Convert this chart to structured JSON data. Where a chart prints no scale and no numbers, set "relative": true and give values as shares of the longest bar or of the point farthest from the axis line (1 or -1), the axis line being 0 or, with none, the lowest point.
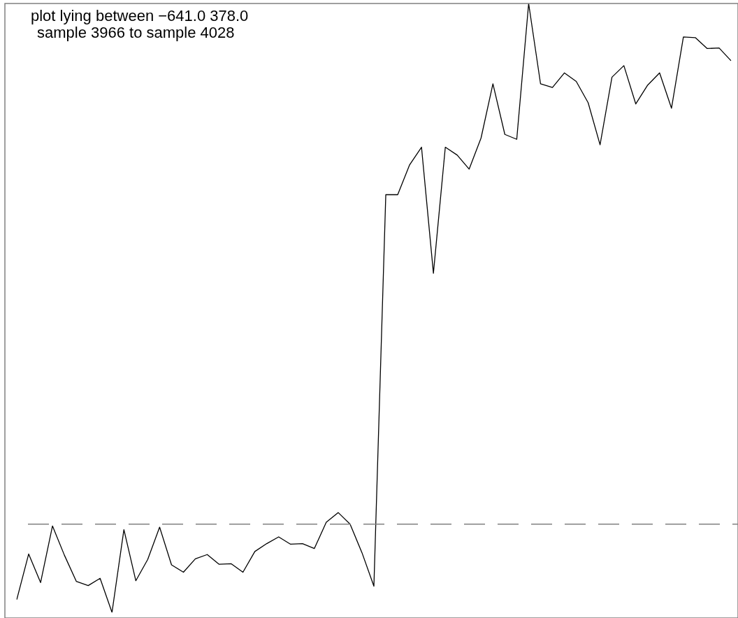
{
  "chart_data": {
    "type": "line",
    "relative": true,
    "annotations": [
      "plot lying between −641.0 378.0",
      "sample 3966 to sample 4028"
    ],
    "categories": [
      null,
      null,
      null,
      null,
      null,
      null,
      null,
      null,
      null,
      null,
      null,
      null,
      null,
      null,
      null,
      null,
      null,
      null,
      null,
      null,
      null,
      null,
      null,
      null,
      null,
      null,
      null,
      null,
      null,
      null,
      null,
      null,
      null,
      null,
      null,
      null,
      null,
      null,
      null,
      null,
      null,
      null,
      null,
      null,
      null,
      null,
      null,
      null,
      null,
      null,
      null,
      null,
      null,
      null,
      null,
      null,
      null,
      null,
      null,
      null,
      null
    ],
    "series": [
      {
        "color": "#000000",
        "values": [
          0.021,
          0.096,
          0.049,
          0.142,
          0.094,
          0.051,
          0.044,
          0.056,
          0,
          0.136,
          0.052,
          0.087,
          0.14,
          0.078,
          0.066,
          0.088,
          0.095,
          0.079,
          0.08,
          0.066,
          0.1,
          0.113,
          0.124,
          0.112,
          0.113,
          0.105,
          0.148,
          0.164,
          0.145,
          0.098,
          0.043,
          0.686,
          0.686,
          0.735,
          0.764,
          0.557,
          0.764,
          0.751,
          0.728,
          0.779,
          0.868,
          0.785,
          0.777,
          1,
          0.868,
          0.862,
          0.886,
          0.872,
          0.837,
          0.768,
          0.879,
          0.898,
          0.835,
          0.866,
          0.886,
          0.828,
          0.945,
          0.944,
          0.926,
          0.927,
          0.906
        ]
      }
    ],
    "marker": "none",
    "line_style": "solid",
    "ref_lines": [
      {
        "axis": "y",
        "value": 0.145,
        "color": "#808080",
        "line_style": "dashed"
      }
    ]
  }
}
